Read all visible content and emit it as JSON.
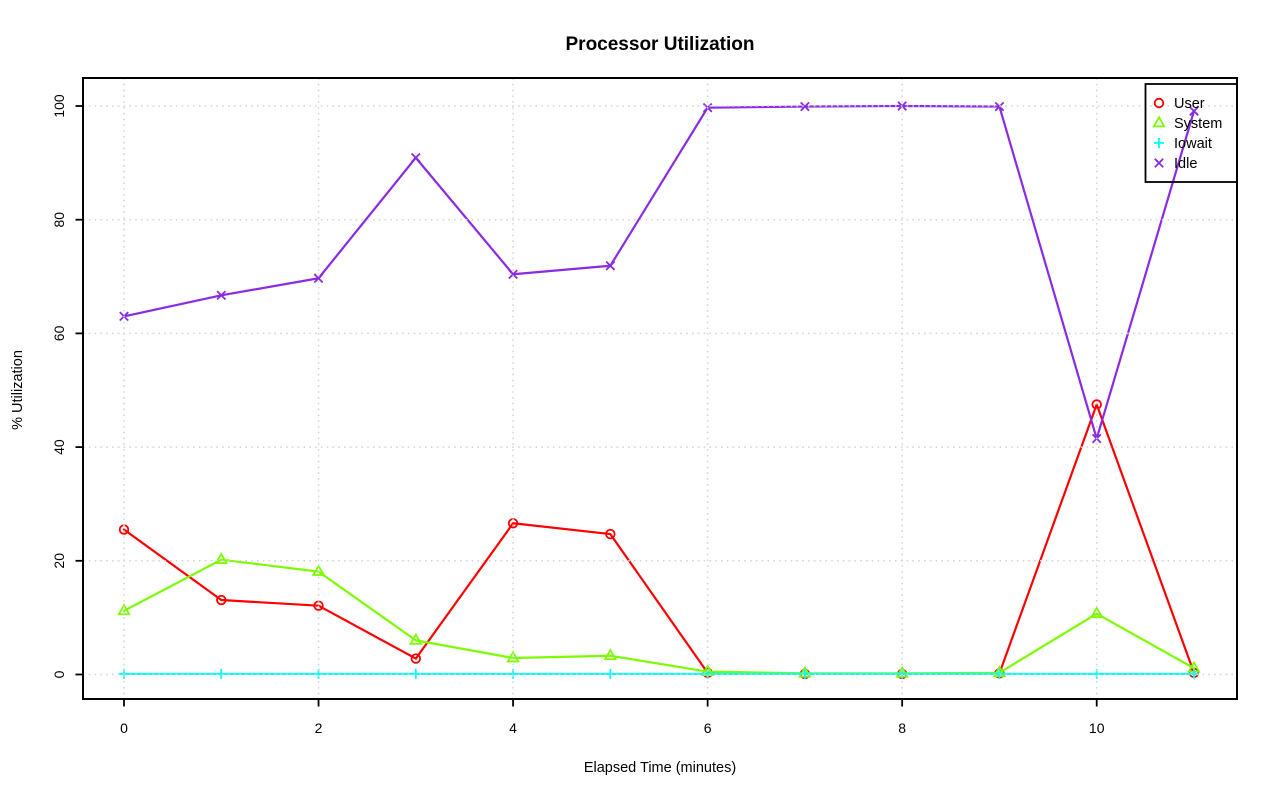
{
  "window": {
    "title": "Processor Utilization"
  },
  "chart_data": {
    "type": "line",
    "title": "Processor Utilization",
    "xlabel": "Elapsed Time (minutes)",
    "ylabel": "% Utilization",
    "x": [
      0,
      1,
      2,
      3,
      4,
      5,
      6,
      7,
      8,
      9,
      10,
      11
    ],
    "xlim": [
      -0.44,
      11.44
    ],
    "ylim": [
      -4,
      104
    ],
    "xticks": [
      0,
      2,
      4,
      6,
      8,
      10
    ],
    "yticks": [
      0,
      20,
      40,
      60,
      80,
      100
    ],
    "grid": true,
    "grid_style": "dotted",
    "legend_position": "top-right",
    "series": [
      {
        "name": "User",
        "color": "#FF0000",
        "marker": "circle",
        "values": [
          25.5,
          13.1,
          12.1,
          2.8,
          26.6,
          24.7,
          0.3,
          0.1,
          0.1,
          0.2,
          47.5,
          0.3
        ]
      },
      {
        "name": "System",
        "color": "#7CFC00",
        "marker": "triangle",
        "values": [
          11.2,
          20.2,
          18.1,
          6.0,
          2.9,
          3.3,
          0.5,
          0.2,
          0.2,
          0.3,
          10.7,
          1.1
        ]
      },
      {
        "name": "Iowait",
        "color": "#00FFFF",
        "marker": "plus",
        "values": [
          0.1,
          0.1,
          0.1,
          0.1,
          0.1,
          0.1,
          0.1,
          0.1,
          0.1,
          0.1,
          0.1,
          0.1
        ]
      },
      {
        "name": "Idle",
        "color": "#8A2BE2",
        "marker": "x",
        "values": [
          63.0,
          66.7,
          69.7,
          90.9,
          70.4,
          71.9,
          99.7,
          99.9,
          100.0,
          99.9,
          41.5,
          99.1
        ]
      }
    ]
  },
  "colors": {
    "background": "#FFFFFF",
    "grid": "#D3D3D3",
    "axis": "#000000",
    "legend_border": "#000000"
  }
}
